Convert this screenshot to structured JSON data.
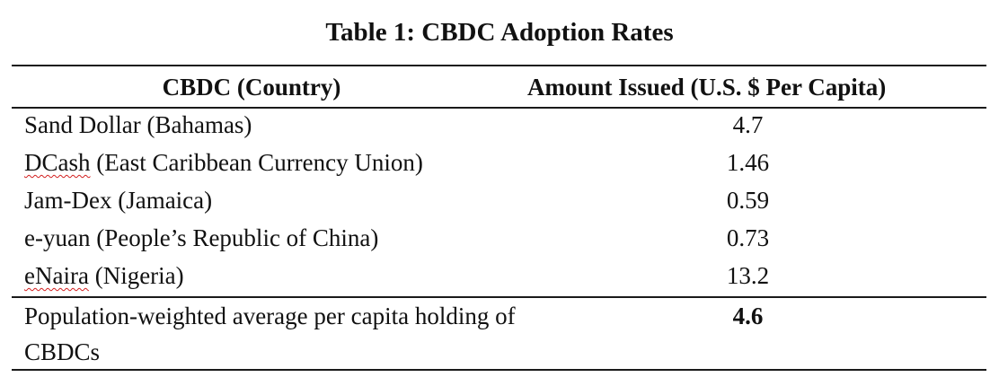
{
  "table": {
    "caption": "Table 1: CBDC Adoption Rates",
    "headers": [
      "CBDC (Country)",
      "Amount Issued (U.S. $ Per Capita)"
    ],
    "rows": [
      {
        "name_marked": "",
        "name_rest": "Sand Dollar (Bahamas)",
        "value": "4.7"
      },
      {
        "name_marked": "DCash",
        "name_rest": " (East Caribbean Currency Union)",
        "value": "1.46"
      },
      {
        "name_marked": "",
        "name_rest": "Jam-Dex (Jamaica)",
        "value": "0.59"
      },
      {
        "name_marked": "",
        "name_rest": "e-yuan (People’s Republic of China)",
        "value": "0.73"
      },
      {
        "name_marked": "eNaira",
        "name_rest": " (Nigeria)",
        "value": "13.2"
      }
    ],
    "summary": {
      "label": "Population-weighted average per capita holding of CBDCs",
      "value": "4.6"
    }
  },
  "colors": {
    "text": "#111111",
    "rule": "#1a1a1a",
    "spellcheck_underline": "#d21f1f"
  }
}
